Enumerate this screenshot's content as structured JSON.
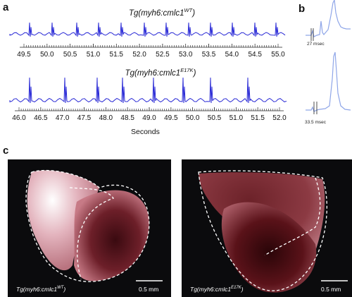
{
  "panels": {
    "a": {
      "letter": "a",
      "trace_top": {
        "title_main": "Tg(myh6:cmlc1",
        "title_sup": "WT",
        "title_end": ")",
        "tick_labels": [
          "49.5",
          "50.0",
          "50.5",
          "51.0",
          "51.5",
          "52.0",
          "52.5",
          "53.0",
          "53.5",
          "54.0",
          "54.5",
          "55.0"
        ]
      },
      "trace_bottom": {
        "title_main": "Tg(myh6:cmlc1",
        "title_sup": "E17K",
        "title_end": ")",
        "tick_labels": [
          "46.0",
          "46.5",
          "47.0",
          "47.5",
          "48.0",
          "48.5",
          "49.0",
          "49.5",
          "50.0",
          "50.5",
          "51.0",
          "51.5",
          "52.0"
        ]
      },
      "xlabel": "Seconds",
      "trace_color": "#2b2bd6"
    },
    "b": {
      "letter": "b",
      "top_interval": "27 msec",
      "bottom_interval": "33.5 msec",
      "trace_color": "#8fa6e8"
    },
    "c": {
      "letter": "c",
      "left_caption_main": "Tg(myh6:cmlc1",
      "left_caption_sup": "WT",
      "left_caption_end": ")",
      "right_caption_main": "Tg(myh6:cmlc1",
      "right_caption_sup": "E17K",
      "right_caption_end": ")",
      "scale_bar_label_left": "0.5 mm",
      "scale_bar_label_right": "0.5 mm"
    }
  }
}
